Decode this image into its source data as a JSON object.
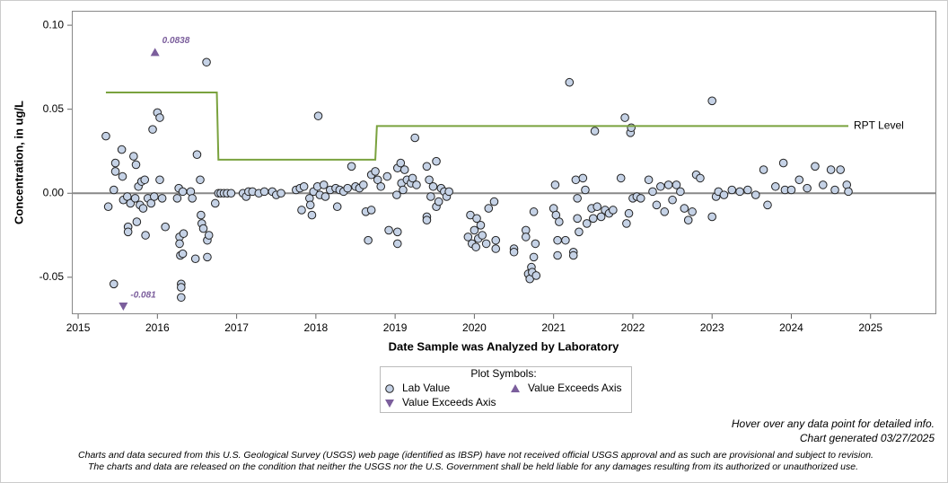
{
  "chart_data": {
    "type": "scatter",
    "x_label": "Date Sample was Analyzed by Laboratory",
    "y_label": "Concentration, in ug/L",
    "xlim": [
      2014.92,
      2025.83
    ],
    "ylim": [
      -0.072,
      0.1086
    ],
    "xticks": [
      2015,
      2016,
      2017,
      2018,
      2019,
      2020,
      2021,
      2022,
      2023,
      2024,
      2025
    ],
    "yticks": [
      -0.05,
      {
        "value": 0,
        "label": "0.00"
      },
      0.05,
      {
        "value": 0.1,
        "label": "0.10"
      }
    ],
    "legend_title": "Plot Symbols:",
    "series": [
      {
        "name": "Lab Value",
        "marker": "circle",
        "color": "#c5d2e6",
        "x": [
          2015.35,
          2015.38,
          2015.45,
          2015.47,
          2015.47,
          2015.45,
          2015.55,
          2015.56,
          2015.57,
          2015.62,
          2015.63,
          2015.63,
          2015.66,
          2015.7,
          2015.72,
          2015.73,
          2015.74,
          2015.76,
          2015.78,
          2015.8,
          2015.82,
          2015.84,
          2015.85,
          2015.88,
          2015.92,
          2015.94,
          2015.96,
          2016.0,
          2016.03,
          2016.03,
          2016.06,
          2016.1,
          2016.25,
          2016.27,
          2016.28,
          2016.28,
          2016.29,
          2016.3,
          2016.3,
          2016.3,
          2016.32,
          2016.32,
          2016.33,
          2016.42,
          2016.44,
          2016.48,
          2016.5,
          2016.54,
          2016.55,
          2016.56,
          2016.58,
          2016.62,
          2016.63,
          2016.63,
          2016.65,
          2016.73,
          2016.77,
          2016.8,
          2016.84,
          2016.88,
          2016.93,
          2017.08,
          2017.12,
          2017.15,
          2017.2,
          2017.28,
          2017.35,
          2017.45,
          2017.5,
          2017.56,
          2017.75,
          2017.8,
          2017.82,
          2017.85,
          2017.92,
          2017.93,
          2017.95,
          2017.97,
          2018.02,
          2018.03,
          2018.05,
          2018.1,
          2018.12,
          2018.18,
          2018.25,
          2018.27,
          2018.3,
          2018.35,
          2018.4,
          2018.45,
          2018.5,
          2018.55,
          2018.6,
          2018.63,
          2018.66,
          2018.7,
          2018.7,
          2018.75,
          2018.78,
          2018.82,
          2018.9,
          2018.92,
          2019.02,
          2019.03,
          2019.03,
          2019.03,
          2019.07,
          2019.08,
          2019.1,
          2019.12,
          2019.15,
          2019.2,
          2019.22,
          2019.25,
          2019.27,
          2019.4,
          2019.4,
          2019.4,
          2019.43,
          2019.45,
          2019.48,
          2019.52,
          2019.52,
          2019.55,
          2019.58,
          2019.62,
          2019.65,
          2019.68,
          2019.92,
          2019.95,
          2019.97,
          2020.0,
          2020.02,
          2020.03,
          2020.05,
          2020.08,
          2020.1,
          2020.15,
          2020.18,
          2020.25,
          2020.27,
          2020.27,
          2020.5,
          2020.5,
          2020.65,
          2020.65,
          2020.68,
          2020.7,
          2020.72,
          2020.73,
          2020.75,
          2020.75,
          2020.77,
          2020.78,
          2021.0,
          2021.02,
          2021.03,
          2021.05,
          2021.05,
          2021.07,
          2021.15,
          2021.2,
          2021.25,
          2021.25,
          2021.28,
          2021.3,
          2021.3,
          2021.32,
          2021.37,
          2021.4,
          2021.42,
          2021.48,
          2021.5,
          2021.52,
          2021.55,
          2021.6,
          2021.65,
          2021.7,
          2021.75,
          2021.85,
          2021.9,
          2021.92,
          2021.95,
          2021.97,
          2021.98,
          2022.0,
          2022.05,
          2022.1,
          2022.2,
          2022.25,
          2022.3,
          2022.35,
          2022.4,
          2022.45,
          2022.5,
          2022.55,
          2022.6,
          2022.65,
          2022.7,
          2022.75,
          2022.8,
          2022.85,
          2023.0,
          2023.0,
          2023.05,
          2023.08,
          2023.15,
          2023.25,
          2023.35,
          2023.45,
          2023.55,
          2023.65,
          2023.7,
          2023.8,
          2023.9,
          2023.92,
          2024.0,
          2024.1,
          2024.2,
          2024.3,
          2024.4,
          2024.5,
          2024.55,
          2024.62,
          2024.7,
          2024.72
        ],
        "values": [
          0.034,
          -0.008,
          0.002,
          0.018,
          0.013,
          -0.054,
          0.026,
          0.01,
          -0.004,
          -0.002,
          -0.02,
          -0.023,
          -0.006,
          0.022,
          -0.003,
          0.017,
          -0.017,
          0.004,
          -0.007,
          0.007,
          -0.009,
          0.008,
          -0.025,
          -0.003,
          -0.006,
          0.038,
          -0.002,
          0.048,
          0.045,
          0.008,
          -0.003,
          -0.02,
          -0.003,
          0.003,
          -0.026,
          -0.03,
          -0.037,
          -0.054,
          -0.056,
          -0.062,
          0.001,
          -0.036,
          -0.024,
          0.001,
          -0.003,
          -0.039,
          0.023,
          0.008,
          -0.013,
          -0.018,
          -0.021,
          0.078,
          -0.028,
          -0.038,
          -0.025,
          -0.006,
          0,
          0,
          0,
          0,
          0,
          0,
          -0.002,
          0.001,
          0.001,
          0,
          0.001,
          0.001,
          -0.001,
          0,
          0.002,
          0.003,
          -0.01,
          0.004,
          -0.003,
          -0.007,
          -0.013,
          0.001,
          0.004,
          0.046,
          -0.001,
          0.005,
          -0.002,
          0.002,
          0.003,
          -0.008,
          0.002,
          0.001,
          0.003,
          0.016,
          0.004,
          0.003,
          0.005,
          -0.011,
          -0.028,
          -0.01,
          0.011,
          0.013,
          0.008,
          0.004,
          0.01,
          -0.022,
          -0.001,
          0.015,
          -0.023,
          -0.03,
          0.018,
          0.006,
          0.002,
          0.014,
          0.008,
          0.006,
          0.009,
          0.033,
          0.005,
          0.016,
          -0.014,
          -0.016,
          0.008,
          -0.002,
          0.004,
          0.019,
          -0.008,
          -0.005,
          0.003,
          0.001,
          -0.002,
          0.001,
          -0.026,
          -0.013,
          -0.03,
          -0.022,
          -0.032,
          -0.015,
          -0.027,
          -0.019,
          -0.025,
          -0.03,
          -0.009,
          -0.005,
          -0.028,
          -0.033,
          -0.033,
          -0.035,
          -0.022,
          -0.026,
          -0.048,
          -0.051,
          -0.044,
          -0.047,
          -0.038,
          -0.011,
          -0.03,
          -0.049,
          -0.009,
          0.005,
          -0.013,
          -0.037,
          -0.028,
          -0.017,
          -0.028,
          0.066,
          -0.035,
          -0.037,
          0.008,
          -0.003,
          -0.015,
          -0.023,
          0.009,
          0.002,
          -0.018,
          -0.009,
          -0.015,
          0.037,
          -0.008,
          -0.014,
          -0.01,
          -0.012,
          -0.01,
          0.009,
          0.045,
          -0.018,
          -0.012,
          0.036,
          0.039,
          -0.003,
          -0.002,
          -0.003,
          0.008,
          0.001,
          -0.007,
          0.004,
          -0.011,
          0.005,
          -0.004,
          0.005,
          0.001,
          -0.009,
          -0.016,
          -0.011,
          0.011,
          0.009,
          0.055,
          -0.014,
          -0.002,
          0.001,
          -0.001,
          0.002,
          0.001,
          0.002,
          -0.001,
          0.014,
          -0.007,
          0.004,
          0.018,
          0.002,
          0.002,
          0.008,
          0.003,
          0.016,
          0.005,
          0.014,
          0.002,
          0.014,
          0.005,
          0.001
        ]
      },
      {
        "name": "Value Exceeds Axis",
        "marker": "triangle-up",
        "color": "#7b5e9c",
        "x": [
          2015.97
        ],
        "values": [
          0.0838
        ]
      },
      {
        "name": "Value Exceeds Axis",
        "marker": "triangle-down",
        "color": "#7b5e9c",
        "x": [
          2015.57
        ],
        "values": [
          -0.081
        ]
      },
      {
        "name": "RPT Level",
        "marker": "line",
        "color": "#7aa23e",
        "x": [
          2015.35,
          2016.75,
          2016.77,
          2018.75,
          2018.77,
          2024.72
        ],
        "values": [
          0.06,
          0.06,
          0.02,
          0.02,
          0.04,
          0.04
        ]
      }
    ],
    "notes": [
      "Hover over any data point for detailed info.",
      "Chart generated 03/27/2025"
    ],
    "disclaimer": [
      "Charts and data secured from this U.S. Geological Survey (USGS) web page (identified as IBSP) have not received official USGS approval and as such are provisional and subject to revision.",
      "The charts and data are released on the condition that neither the USGS nor the U.S. Government shall be held liable for any damages resulting from its authorized or unauthorized use."
    ]
  }
}
